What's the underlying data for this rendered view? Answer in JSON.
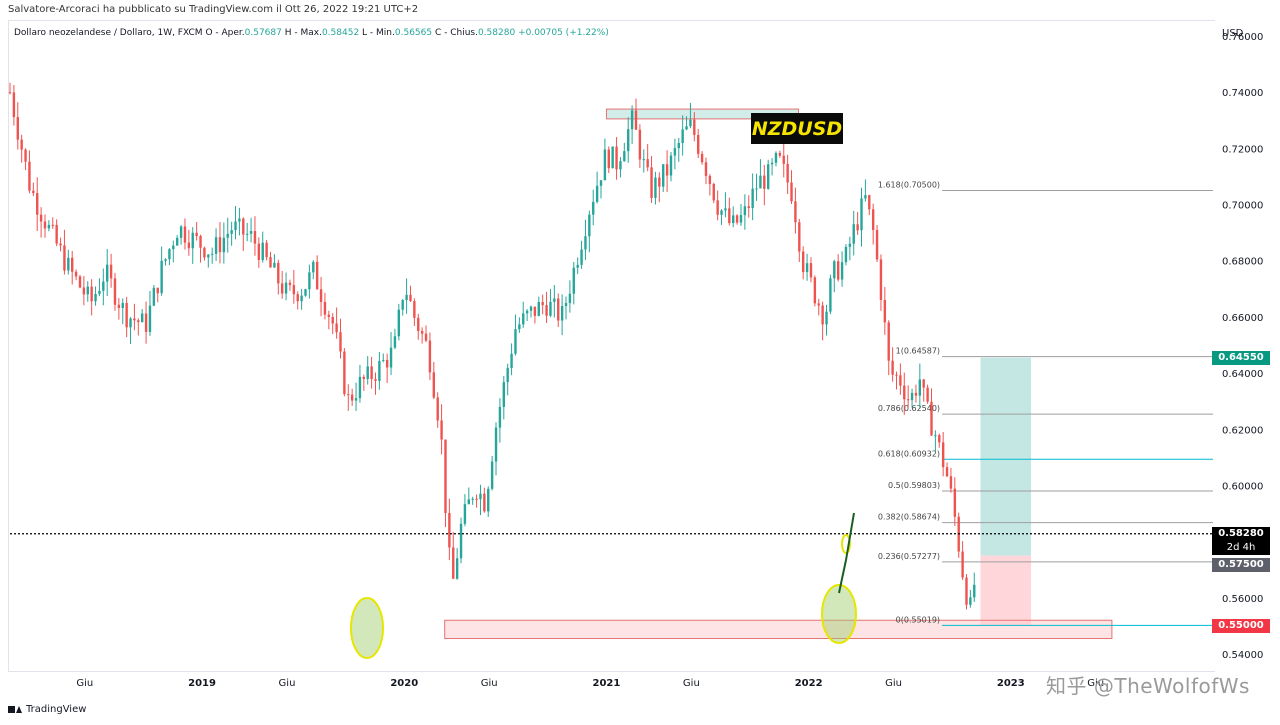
{
  "header": {
    "publish_line": "Salvatore-Arcoraci ha pubblicato su TradingView.com il Ott 26, 2022 19:21 UTC+2"
  },
  "legend": {
    "symbol": "Dollaro neozelandese / Dollaro, 1W, FXCM",
    "open_label": "O - Aper.",
    "open": "0.57687",
    "high_label": "H - Max.",
    "high": "0.58452",
    "low_label": "L - Min.",
    "low": "0.56565",
    "close_label": "C - Chius.",
    "close": "0.58280",
    "change": "+0.00705 (+1.22%)"
  },
  "badge": "NZDUSD",
  "footer": {
    "brand": "TradingView"
  },
  "watermark": "知乎 @TheWolfofWs",
  "price_tags": {
    "target": "0.64550",
    "last": "0.58280",
    "countdown": "2d 4h",
    "entry": "0.57500",
    "stop": "0.55000"
  },
  "colors": {
    "up": "#26a69a",
    "down": "#ef5350",
    "target_zone": "#b2dfdb",
    "stop_zone": "#ffcdd2",
    "fib_blue": "#00bcd4"
  },
  "chart_data": {
    "type": "candlestick",
    "axis_title": "USD",
    "ylim": [
      0.535,
      0.765
    ],
    "y_ticks": [
      0.76,
      0.74,
      0.72,
      0.7,
      0.68,
      0.66,
      0.64,
      0.62,
      0.6,
      0.58,
      0.56,
      0.54
    ],
    "y_tick_labels": [
      "0.76000",
      "0.74000",
      "0.72000",
      "0.70000",
      "0.68000",
      "0.66000",
      "0.64000",
      "0.62000",
      "0.60000",
      "0.58000",
      "0.56000",
      "0.54000"
    ],
    "x_ticks": [
      {
        "label": "Giu",
        "t": 2018.42
      },
      {
        "label": "2019",
        "t": 2019.0
      },
      {
        "label": "Giu",
        "t": 2019.42
      },
      {
        "label": "2020",
        "t": 2020.0
      },
      {
        "label": "Giu",
        "t": 2020.42
      },
      {
        "label": "2021",
        "t": 2021.0
      },
      {
        "label": "Giu",
        "t": 2021.42
      },
      {
        "label": "2022",
        "t": 2022.0
      },
      {
        "label": "Giu",
        "t": 2022.42
      },
      {
        "label": "2023",
        "t": 2023.0
      },
      {
        "label": "Giu",
        "t": 2023.42
      }
    ],
    "xlim": [
      2018.05,
      2024.0
    ],
    "path": [
      [
        2018.05,
        0.74
      ],
      [
        2018.15,
        0.706
      ],
      [
        2018.25,
        0.69
      ],
      [
        2018.35,
        0.676
      ],
      [
        2018.45,
        0.665
      ],
      [
        2018.52,
        0.676
      ],
      [
        2018.62,
        0.661
      ],
      [
        2018.72,
        0.657
      ],
      [
        2018.8,
        0.677
      ],
      [
        2018.88,
        0.692
      ],
      [
        2018.95,
        0.688
      ],
      [
        2019.05,
        0.683
      ],
      [
        2019.15,
        0.692
      ],
      [
        2019.25,
        0.688
      ],
      [
        2019.35,
        0.676
      ],
      [
        2019.42,
        0.668
      ],
      [
        2019.5,
        0.67
      ],
      [
        2019.55,
        0.676
      ],
      [
        2019.65,
        0.657
      ],
      [
        2019.72,
        0.63
      ],
      [
        2019.78,
        0.636
      ],
      [
        2019.85,
        0.64
      ],
      [
        2019.95,
        0.648
      ],
      [
        2020.0,
        0.672
      ],
      [
        2020.05,
        0.66
      ],
      [
        2020.12,
        0.648
      ],
      [
        2020.18,
        0.62
      ],
      [
        2020.22,
        0.575
      ],
      [
        2020.24,
        0.565
      ],
      [
        2020.28,
        0.585
      ],
      [
        2020.35,
        0.6
      ],
      [
        2020.4,
        0.594
      ],
      [
        2020.45,
        0.62
      ],
      [
        2020.55,
        0.656
      ],
      [
        2020.62,
        0.661
      ],
      [
        2020.7,
        0.665
      ],
      [
        2020.78,
        0.66
      ],
      [
        2020.85,
        0.68
      ],
      [
        2020.92,
        0.7
      ],
      [
        2021.0,
        0.718
      ],
      [
        2021.05,
        0.715
      ],
      [
        2021.1,
        0.725
      ],
      [
        2021.13,
        0.73
      ],
      [
        2021.18,
        0.715
      ],
      [
        2021.22,
        0.705
      ],
      [
        2021.3,
        0.712
      ],
      [
        2021.38,
        0.725
      ],
      [
        2021.42,
        0.728
      ],
      [
        2021.48,
        0.716
      ],
      [
        2021.55,
        0.7
      ],
      [
        2021.62,
        0.692
      ],
      [
        2021.68,
        0.696
      ],
      [
        2021.75,
        0.708
      ],
      [
        2021.8,
        0.71
      ],
      [
        2021.85,
        0.716
      ],
      [
        2021.92,
        0.704
      ],
      [
        2021.97,
        0.68
      ],
      [
        2022.02,
        0.67
      ],
      [
        2022.08,
        0.66
      ],
      [
        2022.12,
        0.675
      ],
      [
        2022.18,
        0.68
      ],
      [
        2022.22,
        0.69
      ],
      [
        2022.28,
        0.702
      ],
      [
        2022.32,
        0.69
      ],
      [
        2022.36,
        0.668
      ],
      [
        2022.4,
        0.64
      ],
      [
        2022.45,
        0.638
      ],
      [
        2022.5,
        0.63
      ],
      [
        2022.55,
        0.638
      ],
      [
        2022.58,
        0.627
      ],
      [
        2022.62,
        0.62
      ],
      [
        2022.65,
        0.612
      ],
      [
        2022.68,
        0.605
      ],
      [
        2022.7,
        0.598
      ],
      [
        2022.72,
        0.59
      ],
      [
        2022.74,
        0.58
      ],
      [
        2022.76,
        0.57
      ],
      [
        2022.78,
        0.562
      ],
      [
        2022.8,
        0.556
      ],
      [
        2022.82,
        0.5652
      ],
      [
        2022.83,
        0.5828
      ]
    ],
    "annotations": {
      "fib_levels": [
        {
          "label": "1.618(0.70500)",
          "value": 0.705
        },
        {
          "label": "1(0.64587)",
          "value": 0.64587
        },
        {
          "label": "0.786(0.62540)",
          "value": 0.6254
        },
        {
          "label": "0.618(0.60932)",
          "value": 0.60932
        },
        {
          "label": "0.5(0.59803)",
          "value": 0.59803
        },
        {
          "label": "0.382(0.58674)",
          "value": 0.58674
        },
        {
          "label": "0.236(0.57277)",
          "value": 0.57277
        },
        {
          "label": "0(0.55019)",
          "value": 0.55019
        }
      ],
      "resistance_zone": {
        "t0": 2021.0,
        "t1": 2021.95,
        "y0": 0.7305,
        "y1": 0.734
      },
      "support_zone": {
        "t0": 2020.2,
        "t1": 2023.5,
        "y0": 0.5455,
        "y1": 0.552
      },
      "target_zone": {
        "t0": 2022.85,
        "t1": 2023.1,
        "y0": 0.575,
        "y1": 0.6455
      },
      "stop_zone": {
        "t0": 2022.85,
        "t1": 2023.1,
        "y0": 0.55,
        "y1": 0.575
      },
      "last_price": 0.5828
    }
  }
}
